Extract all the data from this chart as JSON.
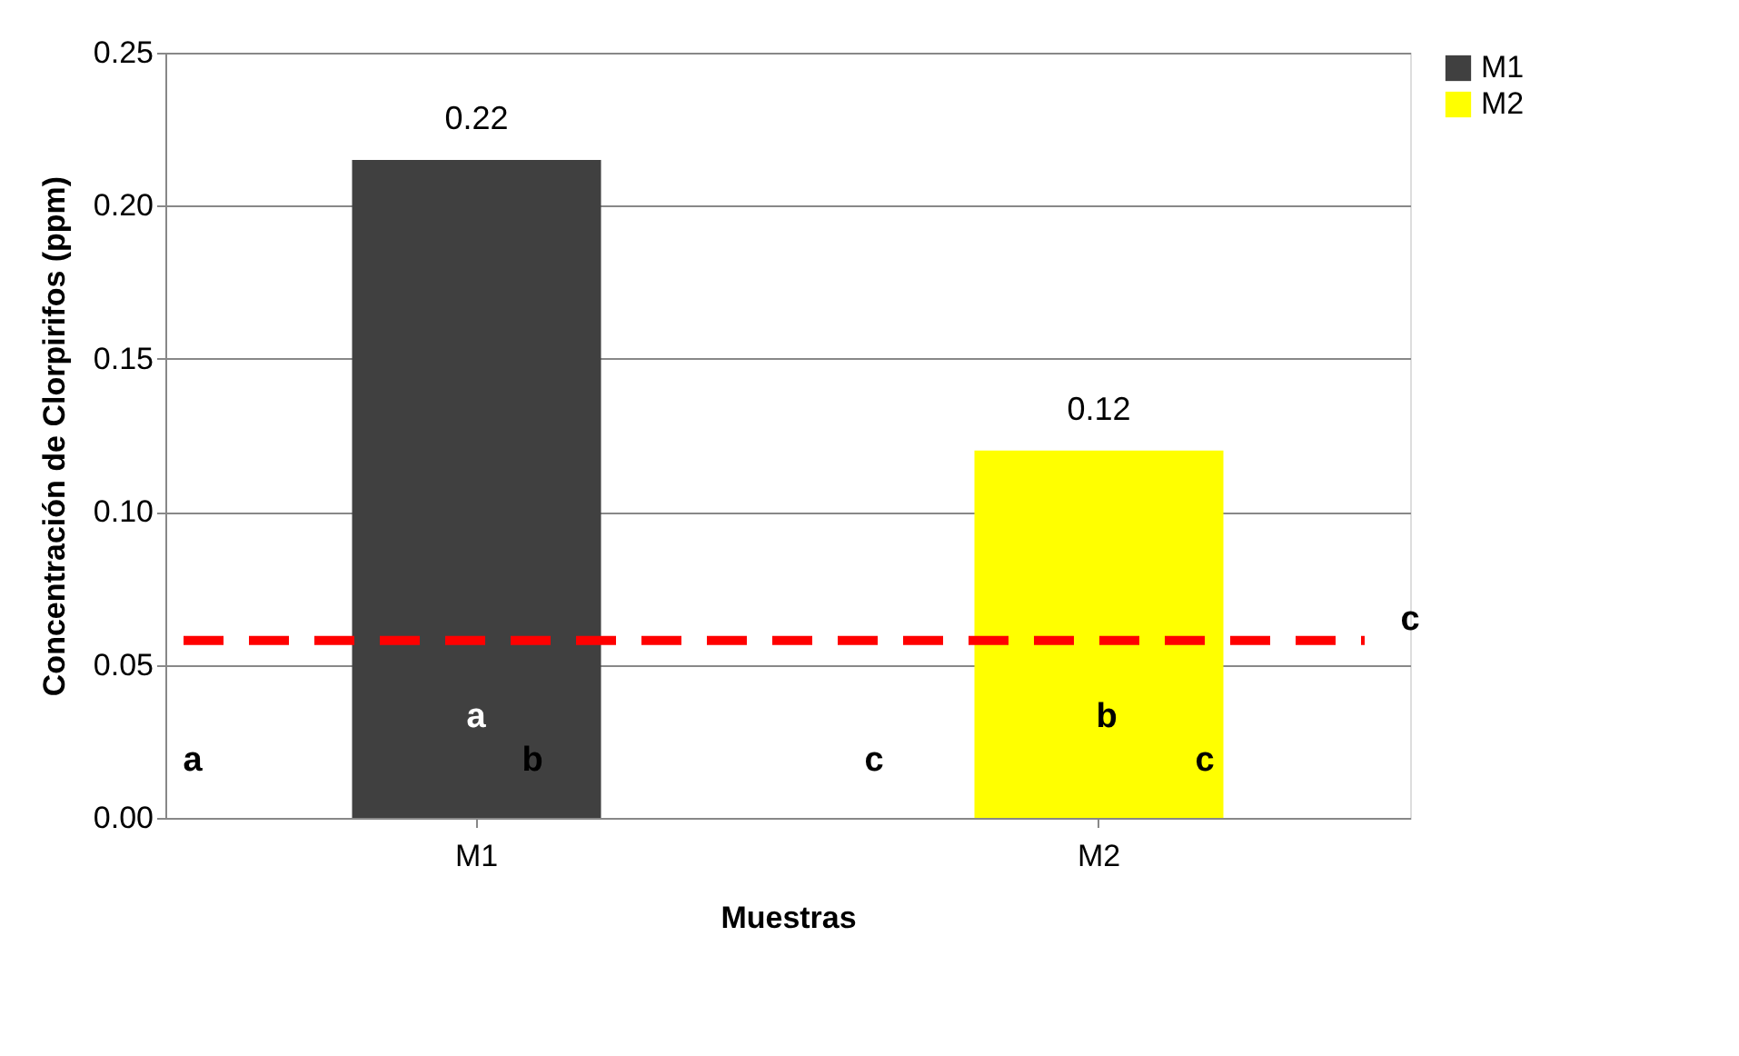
{
  "chart_data": {
    "type": "bar",
    "xlabel": "Muestras",
    "ylabel": "Concentración de Clorpirifos (ppm)",
    "categories": [
      "M1",
      "M2"
    ],
    "series": [
      {
        "name": "M1",
        "color": "#404040",
        "values": [
          0.215,
          null
        ],
        "value_labels": [
          "0.22",
          null
        ]
      },
      {
        "name": "M2",
        "color": "#ffff00",
        "values": [
          null,
          0.12
        ],
        "value_labels": [
          null,
          "0.12"
        ]
      }
    ],
    "ylim": [
      0,
      0.25
    ],
    "yticks": [
      {
        "value": 0,
        "label": "0.00"
      },
      {
        "value": 0.05,
        "label": "0.05"
      },
      {
        "value": 0.1,
        "label": "0.10"
      },
      {
        "value": 0.15,
        "label": "0.15"
      },
      {
        "value": 0.2,
        "label": "0.20"
      },
      {
        "value": 0.25,
        "label": "0.25"
      }
    ],
    "grid": "y",
    "legend": "right",
    "ref_lines": [
      {
        "axis": "y",
        "value": 0.058,
        "label": "c",
        "color": "#ff0000",
        "line_style": "dashed"
      }
    ],
    "annotations": [
      "a",
      "a",
      "b",
      "c",
      "b",
      "c"
    ]
  }
}
